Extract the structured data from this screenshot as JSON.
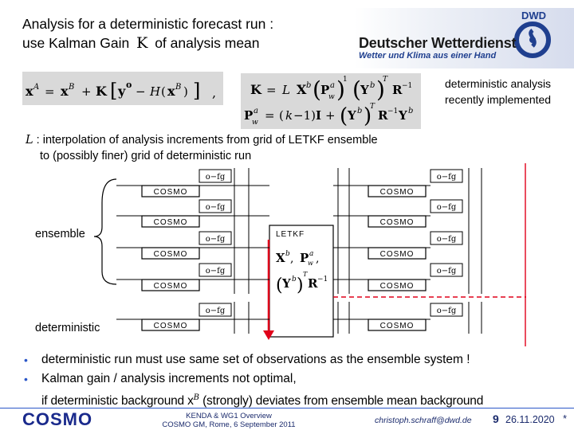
{
  "title": {
    "line1": "Analysis for a deterministic forecast run :",
    "line2_a": "use Kalman Gain",
    "line2_sym": "K",
    "line2_b": "of analysis mean"
  },
  "logo": {
    "org": "Deutscher Wetterdienst",
    "tagline": "Wetter und Klima aus einer Hand",
    "mark": "DWD"
  },
  "note": {
    "line1": "deterministic analysis",
    "line2": "recently implemented"
  },
  "interp": {
    "symbol": "L",
    "line1": ": interpolation of analysis increments from grid of LETKF ensemble",
    "line2": "to (possibly finer) grid of deterministic run"
  },
  "diagram": {
    "ensemble_label": "ensemble",
    "deterministic_label": "deterministic",
    "model_label": "COSMO",
    "ofg_label": "o−fg",
    "letkf_label": "LETKF"
  },
  "bullets": [
    "deterministic run must use same set of observations as the ensemble system !",
    "Kalman gain / analysis increments not optimal,",
    "if deterministic background x",
    "B",
    " (strongly) deviates from ensemble mean background"
  ],
  "footer": {
    "center_line1": "KENDA & WG1 Overview",
    "center_line2": "COSMO GM, Rome, 6 September 2011",
    "email": "christoph.schraff@dwd.de",
    "page": "9",
    "date": "26.11.2020",
    "star": "*",
    "cosmo": "COSMO"
  },
  "colors": {
    "accent": "#2b57c8",
    "arrow": "#e0001a",
    "dashed": "#e0001a",
    "dwd_blue": "#1f3f8f"
  }
}
